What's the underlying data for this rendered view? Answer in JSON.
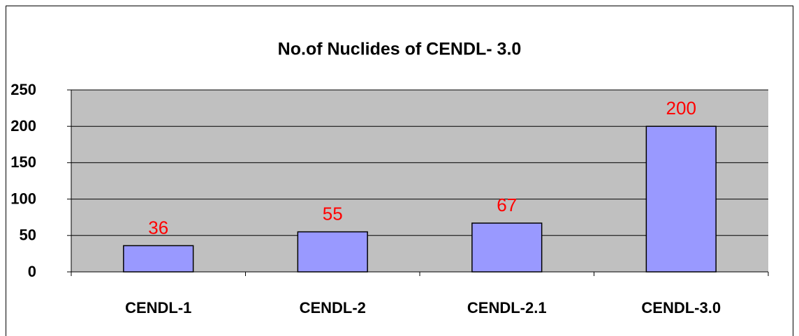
{
  "chart_data": {
    "type": "bar",
    "title": "No.of Nuclides of CENDL- 3.0",
    "categories": [
      "CENDL-1",
      "CENDL-2",
      "CENDL-2.1",
      "CENDL-3.0"
    ],
    "values": [
      36,
      55,
      67,
      200
    ],
    "color": "#9999ff",
    "label_color": "#ff0000",
    "plot_background": "#c0c0c0",
    "ylim": [
      0,
      250
    ],
    "yticks": [
      0,
      50,
      100,
      150,
      200,
      250
    ],
    "grid": true
  }
}
